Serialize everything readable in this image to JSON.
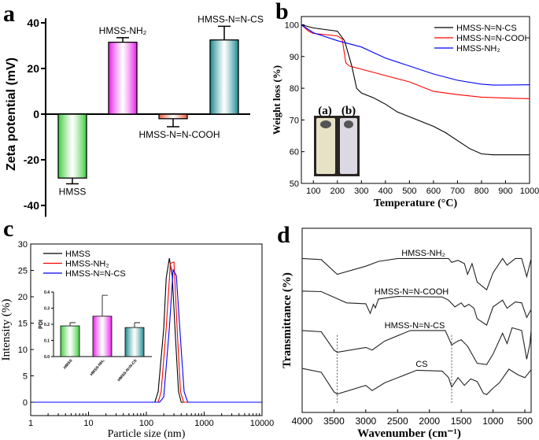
{
  "panel_labels": [
    "a",
    "b",
    "c",
    "d"
  ],
  "chart_data": [
    {
      "id": "a",
      "type": "bar",
      "ylabel": "Zeta potential (mV)",
      "ylim": [
        -45,
        42
      ],
      "yticks": [
        -40,
        -20,
        0,
        20,
        40
      ],
      "categories": [
        "HMSS",
        "HMSS-NH₂",
        "HMSS-N=N-COOH",
        "HMSS-N=N-CS"
      ],
      "values": [
        -28,
        31.5,
        -2,
        32.5
      ],
      "errors": [
        2.5,
        2,
        3.5,
        6
      ],
      "colors": [
        "#3ccc3c",
        "#e81ee8",
        "#f0583a",
        "#17878f"
      ]
    },
    {
      "id": "b",
      "type": "line",
      "xlabel": "Temperature (°C)",
      "ylabel": "Weight loss (%)",
      "xlim": [
        50,
        1000
      ],
      "ylim": [
        50,
        100
      ],
      "xticks": [
        100,
        200,
        300,
        400,
        500,
        600,
        700,
        800,
        900,
        1000
      ],
      "yticks": [
        50,
        60,
        70,
        80,
        90,
        100
      ],
      "legend": "top-right",
      "inset_labels": [
        "(a)",
        "(b)"
      ],
      "series": [
        {
          "name": "HMSS-N=N-CS",
          "color": "#000000",
          "points": [
            [
              50,
              100
            ],
            [
              100,
              99
            ],
            [
              200,
              98
            ],
            [
              230,
              95
            ],
            [
              260,
              87
            ],
            [
              280,
              80
            ],
            [
              300,
              78.5
            ],
            [
              350,
              77
            ],
            [
              400,
              75
            ],
            [
              450,
              72.5
            ],
            [
              500,
              71
            ],
            [
              600,
              68
            ],
            [
              650,
              66
            ],
            [
              700,
              63.5
            ],
            [
              750,
              61
            ],
            [
              800,
              59.3
            ],
            [
              850,
              59
            ],
            [
              1000,
              59
            ]
          ]
        },
        {
          "name": "HMSS-N=N-COOH",
          "color": "#ff0000",
          "points": [
            [
              50,
              100
            ],
            [
              80,
              98
            ],
            [
              100,
              97.3
            ],
            [
              200,
              96.5
            ],
            [
              220,
              95.5
            ],
            [
              235,
              88
            ],
            [
              250,
              87
            ],
            [
              300,
              86
            ],
            [
              400,
              84
            ],
            [
              500,
              82
            ],
            [
              550,
              80.5
            ],
            [
              600,
              79
            ],
            [
              700,
              78
            ],
            [
              800,
              77.2
            ],
            [
              900,
              76.9
            ],
            [
              1000,
              76.7
            ]
          ]
        },
        {
          "name": "HMSS-NH₂",
          "color": "#0000ff",
          "points": [
            [
              50,
              100
            ],
            [
              100,
              97.5
            ],
            [
              200,
              95
            ],
            [
              300,
              93
            ],
            [
              400,
              89.5
            ],
            [
              500,
              87
            ],
            [
              600,
              84.5
            ],
            [
              700,
              82.5
            ],
            [
              800,
              81.3
            ],
            [
              850,
              81
            ],
            [
              1000,
              81.1
            ]
          ]
        }
      ]
    },
    {
      "id": "c",
      "type": "line",
      "xlabel": "Particle size (nm)",
      "ylabel": "Intensity (%)",
      "xscale": "log",
      "xlim": [
        1,
        10000
      ],
      "ylim": [
        -2.5,
        30
      ],
      "xticks": [
        1,
        10,
        100,
        1000,
        10000
      ],
      "xticklabels": [
        "1",
        "10",
        "100",
        "1000",
        "10000"
      ],
      "yticks": [
        0,
        5,
        10,
        15,
        20,
        25,
        30
      ],
      "legend": "top-left",
      "series": [
        {
          "name": "HMSS",
          "color": "#000000",
          "points": [
            [
              1,
              0
            ],
            [
              140,
              0
            ],
            [
              160,
              2
            ],
            [
              200,
              14
            ],
            [
              220,
              23.5
            ],
            [
              250,
              27.3
            ],
            [
              280,
              24
            ],
            [
              320,
              12
            ],
            [
              360,
              2
            ],
            [
              400,
              0
            ],
            [
              10000,
              0
            ]
          ]
        },
        {
          "name": "HMSS-NH₂",
          "color": "#ff0000",
          "points": [
            [
              1,
              0
            ],
            [
              160,
              0
            ],
            [
              180,
              2
            ],
            [
              220,
              14
            ],
            [
              260,
              26.3
            ],
            [
              300,
              26.6
            ],
            [
              340,
              14
            ],
            [
              390,
              2
            ],
            [
              440,
              0
            ],
            [
              10000,
              0
            ]
          ]
        },
        {
          "name": "HMSS-N=N-CS",
          "color": "#0000ff",
          "points": [
            [
              1,
              0
            ],
            [
              170,
              0
            ],
            [
              200,
              1
            ],
            [
              250,
              14
            ],
            [
              290,
              25.1
            ],
            [
              330,
              24
            ],
            [
              390,
              12
            ],
            [
              450,
              2
            ],
            [
              520,
              0
            ],
            [
              10000,
              0
            ]
          ]
        }
      ],
      "inset": {
        "type": "bar",
        "ylabel": "PDI",
        "ylim": [
          0,
          0.4
        ],
        "yticks": [
          "0.0",
          "0.1",
          "0.2",
          "0.3",
          "0.4"
        ],
        "categories": [
          "HMSS",
          "HMSS-NH₂",
          "HMSS-N=N-CS"
        ],
        "values": [
          0.19,
          0.25,
          0.18
        ],
        "errors": [
          0.02,
          0.13,
          0.03
        ],
        "colors": [
          "#3ccc3c",
          "#e81ee8",
          "#17878f"
        ]
      }
    },
    {
      "id": "d",
      "type": "line",
      "xlabel": "Wavenumber (cm⁻¹)",
      "ylabel": "Transmittance (%)",
      "xlim": [
        4000,
        400
      ],
      "ylim": [
        0,
        100
      ],
      "xticks": [
        4000,
        3500,
        3000,
        2500,
        2000,
        1500,
        1000,
        500
      ],
      "markers": [
        3450,
        1650
      ],
      "series": [
        {
          "name": "HMSS-NH₂",
          "color": "#222222",
          "points": [
            [
              4000,
              83.6
            ],
            [
              3700,
              83
            ],
            [
              3450,
              75
            ],
            [
              3000,
              79.4
            ],
            [
              2800,
              82
            ],
            [
              2500,
              83.6
            ],
            [
              1700,
              83.6
            ],
            [
              1650,
              81.5
            ],
            [
              1550,
              82.6
            ],
            [
              1450,
              80.8
            ],
            [
              1400,
              75
            ],
            [
              1330,
              80.8
            ],
            [
              1250,
              70.8
            ],
            [
              1100,
              66.6
            ],
            [
              1000,
              75.8
            ],
            [
              850,
              83.6
            ],
            [
              780,
              80
            ],
            [
              650,
              83.6
            ],
            [
              550,
              83.6
            ],
            [
              470,
              73.7
            ],
            [
              400,
              83.6
            ]
          ]
        },
        {
          "name": "HMSS-N=N-COOH",
          "color": "#222222",
          "points": [
            [
              4000,
              65.9
            ],
            [
              3700,
              65.6
            ],
            [
              3300,
              59.5
            ],
            [
              3000,
              59
            ],
            [
              2930,
              53.8
            ],
            [
              2880,
              58.7
            ],
            [
              2850,
              56.8
            ],
            [
              2800,
              61.6
            ],
            [
              2500,
              63
            ],
            [
              1800,
              62.7
            ],
            [
              1700,
              61
            ],
            [
              1600,
              57.3
            ],
            [
              1500,
              59.5
            ],
            [
              1450,
              57.3
            ],
            [
              1380,
              58.7
            ],
            [
              1300,
              56.6
            ],
            [
              1250,
              50.9
            ],
            [
              1100,
              47.4
            ],
            [
              1000,
              57.3
            ],
            [
              850,
              61
            ],
            [
              780,
              56.6
            ],
            [
              650,
              60
            ],
            [
              550,
              59.5
            ],
            [
              470,
              51.6
            ],
            [
              400,
              56
            ]
          ]
        },
        {
          "name": "HMSS-N=N-CS",
          "color": "#222222",
          "points": [
            [
              4000,
              44.5
            ],
            [
              3700,
              43.8
            ],
            [
              3500,
              33.9
            ],
            [
              3450,
              32.7
            ],
            [
              3000,
              35.3
            ],
            [
              2900,
              33.9
            ],
            [
              2700,
              38.8
            ],
            [
              2300,
              44.5
            ],
            [
              1750,
              44.5
            ],
            [
              1650,
              36.7
            ],
            [
              1550,
              38.8
            ],
            [
              1500,
              39.5
            ],
            [
              1400,
              36
            ],
            [
              1250,
              26.7
            ],
            [
              1100,
              26
            ],
            [
              1000,
              31.7
            ],
            [
              850,
              43
            ],
            [
              780,
              37.4
            ],
            [
              700,
              46
            ],
            [
              550,
              44.5
            ],
            [
              470,
              28.9
            ],
            [
              420,
              37.4
            ],
            [
              400,
              45.2
            ]
          ]
        },
        {
          "name": "CS",
          "color": "#222222",
          "points": [
            [
              4000,
              23.9
            ],
            [
              3700,
              21.8
            ],
            [
              3500,
              11.2
            ],
            [
              3450,
              10
            ],
            [
              3000,
              14.7
            ],
            [
              2900,
              11.9
            ],
            [
              2700,
              16.1
            ],
            [
              2200,
              22.9
            ],
            [
              1800,
              22.5
            ],
            [
              1700,
              19
            ],
            [
              1650,
              13.8
            ],
            [
              1550,
              18.9
            ],
            [
              1450,
              14.7
            ],
            [
              1350,
              18.2
            ],
            [
              1250,
              16.8
            ],
            [
              1150,
              10.4
            ],
            [
              1100,
              9.7
            ],
            [
              1000,
              13.2
            ],
            [
              900,
              16.1
            ],
            [
              750,
              23.5
            ],
            [
              600,
              20.3
            ],
            [
              500,
              18.9
            ],
            [
              400,
              23.2
            ]
          ]
        }
      ]
    }
  ]
}
